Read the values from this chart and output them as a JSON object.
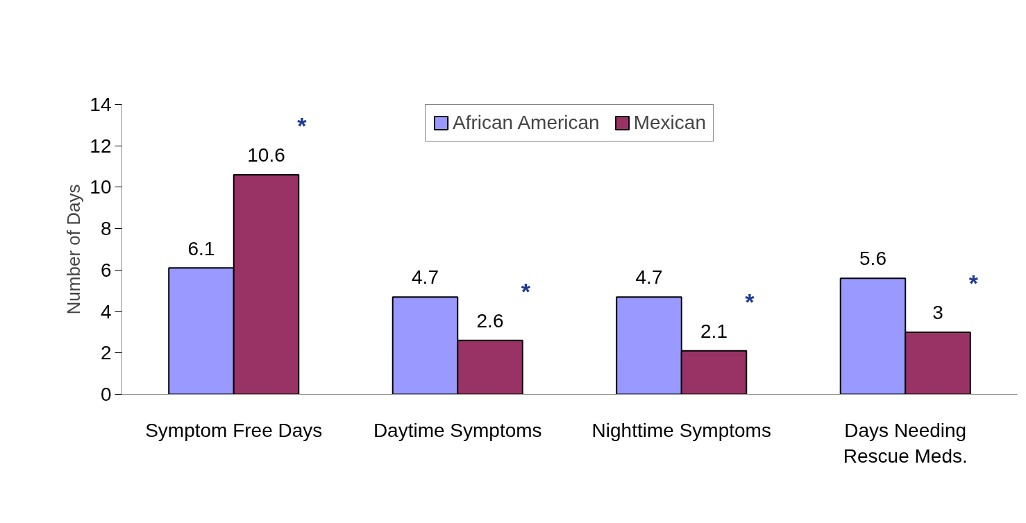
{
  "chart_data": {
    "type": "bar",
    "ylabel": "Number of Days",
    "categories": [
      "Symptom Free Days",
      "Daytime Symptoms",
      "Nighttime Symptoms",
      "Days Needing\nRescue Meds."
    ],
    "series": [
      {
        "name": "African American",
        "color": "#9999ff",
        "values": [
          6.1,
          4.7,
          4.7,
          5.6
        ]
      },
      {
        "name": "Mexican",
        "color": "#993366",
        "values": [
          10.6,
          2.6,
          2.1,
          3
        ]
      }
    ],
    "ylim": [
      0,
      14
    ],
    "yticks": [
      0,
      2,
      4,
      6,
      8,
      10,
      12,
      14
    ],
    "grid": false,
    "legend": "top",
    "data_labels": true,
    "annotations": [
      "*",
      "*",
      "*",
      "*"
    ]
  }
}
